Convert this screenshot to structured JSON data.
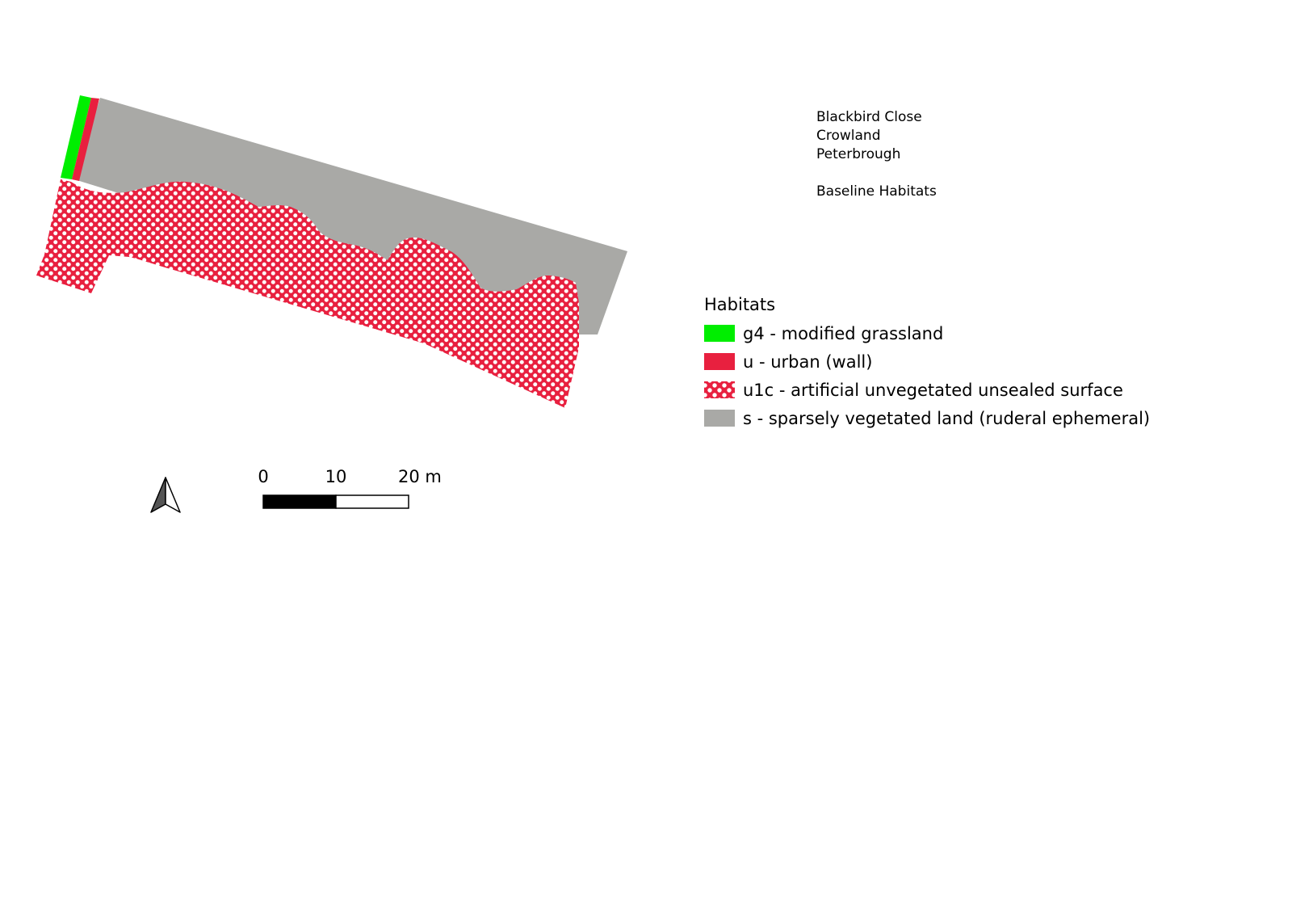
{
  "title": {
    "line1": "Blackbird Close",
    "line2": "Crowland",
    "line3": "Peterbrough",
    "subtitle": "Baseline Habitats"
  },
  "legend": {
    "title": "Habitats",
    "items": [
      {
        "code": "g4",
        "label": "g4 - modified grassland",
        "color": "#00ee00",
        "pattern": "solid"
      },
      {
        "code": "u",
        "label": "u - urban (wall)",
        "color": "#e8203f",
        "pattern": "solid"
      },
      {
        "code": "u1c",
        "label": "u1c - artificial unvegetated unsealed surface",
        "color": "#e8203f",
        "pattern": "dots"
      },
      {
        "code": "s",
        "label": "s - sparsely vegetated land (ruderal ephemeral)",
        "color": "#a9a9a6",
        "pattern": "solid"
      }
    ]
  },
  "scale_bar": {
    "labels": [
      "0",
      "10",
      "20 m"
    ]
  },
  "north_arrow": {
    "icon": "north-arrow-icon"
  }
}
